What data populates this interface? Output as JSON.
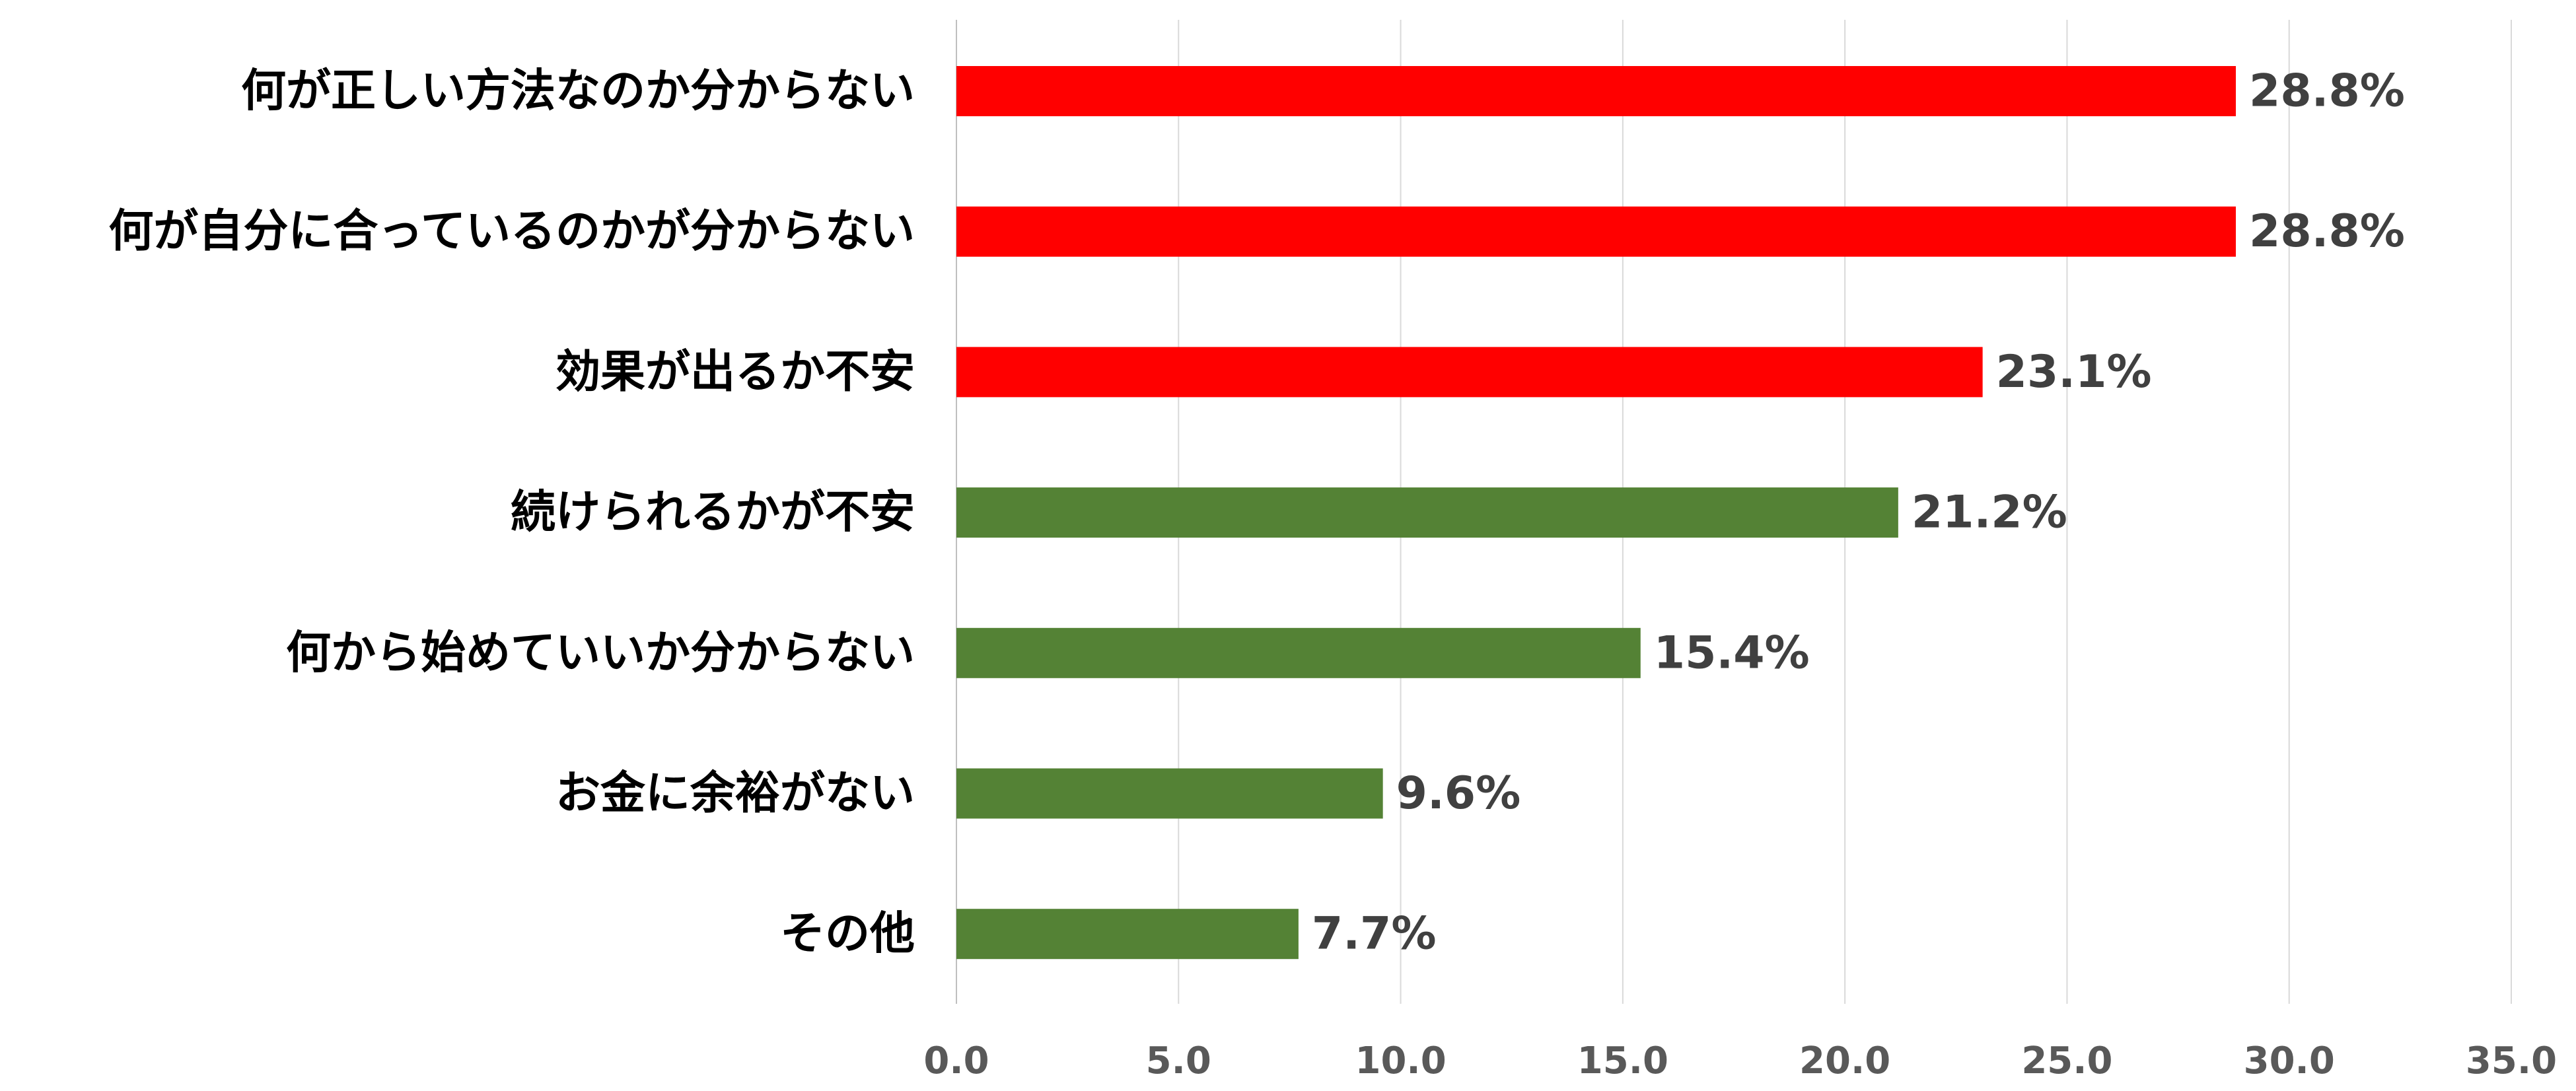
{
  "chart_data": {
    "type": "bar",
    "orientation": "horizontal",
    "categories": [
      "何が正しい方法なのか分からない",
      "何が自分に合っているのかが分からない",
      "効果が出るか不安",
      "続けられるかが不安",
      "何から始めていいか分からない",
      "お金に余裕がない",
      "その他"
    ],
    "values": [
      28.8,
      28.8,
      23.1,
      21.2,
      15.4,
      9.6,
      7.7
    ],
    "value_labels": [
      "28.8%",
      "28.8%",
      "23.1%",
      "21.2%",
      "15.4%",
      "9.6%",
      "7.7%"
    ],
    "bar_colors": [
      "#ff0000",
      "#ff0000",
      "#ff0000",
      "#548235",
      "#548235",
      "#548235",
      "#548235"
    ],
    "xlim": [
      0,
      35
    ],
    "x_ticks": [
      0,
      5,
      10,
      15,
      20,
      25,
      30,
      35
    ],
    "x_tick_labels": [
      "0.0",
      "5.0",
      "10.0",
      "15.0",
      "20.0",
      "25.0",
      "30.0",
      "35.0"
    ],
    "grid": "vertical",
    "legend": "none",
    "title": "",
    "xlabel": "",
    "ylabel": ""
  }
}
